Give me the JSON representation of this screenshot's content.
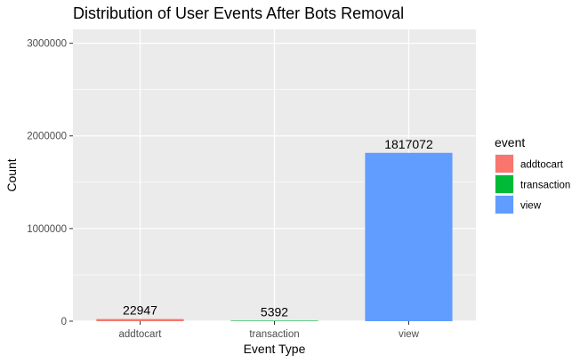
{
  "chart_data": {
    "type": "bar",
    "title": "Distribution of User Events After Bots Removal",
    "xlabel": "Event Type",
    "ylabel": "Count",
    "categories": [
      "addtocart",
      "transaction",
      "view"
    ],
    "values": [
      22947,
      5392,
      1817072
    ],
    "data_labels": [
      "22947",
      "5392",
      "1817072"
    ],
    "ylim": [
      0,
      3150000
    ],
    "yticks": [
      0,
      1000000,
      2000000,
      3000000
    ],
    "ytick_labels": [
      "0",
      "1000000",
      "2000000",
      "3000000"
    ],
    "grid": true,
    "legend": {
      "title": "event",
      "placement": "right",
      "entries": [
        "addtocart",
        "transaction",
        "view"
      ]
    },
    "colors": [
      "#F8766D",
      "#00BA38",
      "#619CFF"
    ],
    "panel_background": "#EBEBEB",
    "grid_color": "#FFFFFF"
  }
}
